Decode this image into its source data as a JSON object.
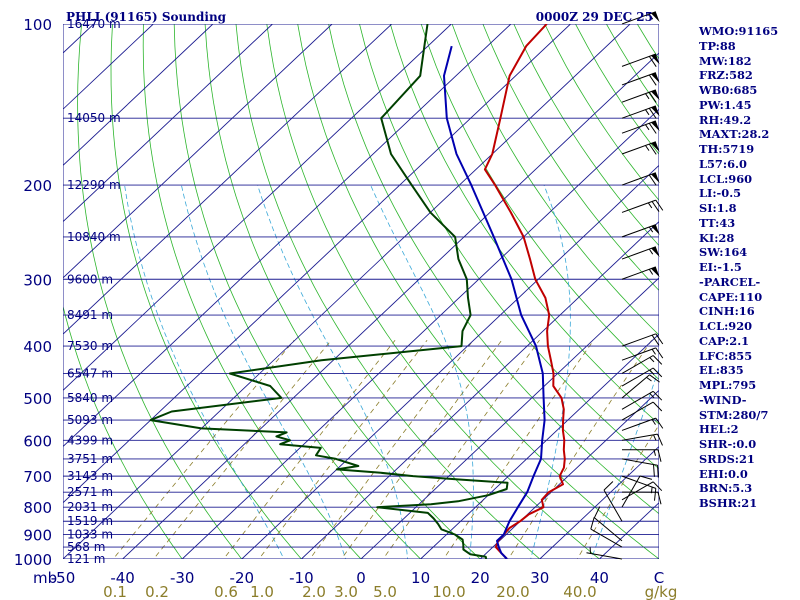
{
  "header": {
    "station": "PHLI (91165) Sounding",
    "time": "0000Z 29 DEC 25"
  },
  "indices": [
    "WMO:91165",
    "TP:88",
    "MW:182",
    "FRZ:582",
    "WB0:685",
    "PW:1.45",
    "RH:49.2",
    "MAXT:28.2",
    "TH:5719",
    "L57:6.0",
    "LCL:960",
    "LI:-0.5",
    "SI:1.8",
    "TT:43",
    "KI:28",
    "SW:164",
    "EI:-1.5",
    "-PARCEL-",
    "CAPE:110",
    "CINH:16",
    "LCL:920",
    "CAP:2.1",
    "LFC:855",
    "EL:835",
    "MPL:795",
    "-WIND-",
    "STM:280/7",
    "HEL:2",
    "SHR-:0.0",
    "SRDS:21",
    "EHI:0.0",
    "BRN:5.3",
    "BSHR:21"
  ],
  "chart_data": {
    "type": "line",
    "title": "PHLI (91165) Sounding",
    "subtitle": "0000Z 29 DEC 25",
    "xlabel": "",
    "ylabel": "mb",
    "y_scale": "log",
    "y_reversed": true,
    "ylim": [
      1000,
      100
    ],
    "xlim": [
      -50,
      50
    ],
    "skew": "skew-T log-p",
    "pressure_ticks": [
      "100",
      "200",
      "300",
      "400",
      "500",
      "600",
      "700",
      "800",
      "900",
      "1000"
    ],
    "temperature_ticks": [
      "-50",
      "-40",
      "-30",
      "-20",
      "-10",
      "0",
      "10",
      "20",
      "30",
      "40",
      "C"
    ],
    "mixing_ratio_ticks": [
      "0.1",
      "0.2",
      "0.6",
      "1.0",
      "2.0",
      "3.0",
      "5.0",
      "10.0",
      "20.0",
      "40.0",
      "g/kg"
    ],
    "height_labels": [
      {
        "p": 100,
        "text": "16470 m"
      },
      {
        "p": 150,
        "text": "14050 m"
      },
      {
        "p": 200,
        "text": "12290 m"
      },
      {
        "p": 250,
        "text": "10840 m"
      },
      {
        "p": 300,
        "text": "9600 m"
      },
      {
        "p": 350,
        "text": "8491 m"
      },
      {
        "p": 400,
        "text": "7530 m"
      },
      {
        "p": 450,
        "text": "6547 m"
      },
      {
        "p": 500,
        "text": "5840 m"
      },
      {
        "p": 550,
        "text": "5093 m"
      },
      {
        "p": 600,
        "text": "4399 m"
      },
      {
        "p": 650,
        "text": "3751 m"
      },
      {
        "p": 700,
        "text": "3143 m"
      },
      {
        "p": 750,
        "text": "2571 m"
      },
      {
        "p": 800,
        "text": "2031 m"
      },
      {
        "p": 850,
        "text": "1519 m"
      },
      {
        "p": 900,
        "text": "1033 m"
      },
      {
        "p": 950,
        "text": "568 m"
      },
      {
        "p": 1000,
        "text": "121 m"
      }
    ],
    "series": [
      {
        "key": "temperature",
        "color": "#c00000",
        "points": [
          [
            1000,
            24.5
          ],
          [
            975,
            22.5
          ],
          [
            950,
            20.5
          ],
          [
            925,
            19.8
          ],
          [
            900,
            19.6
          ],
          [
            875,
            19.4
          ],
          [
            850,
            20.0
          ],
          [
            825,
            20.2
          ],
          [
            800,
            21.4
          ],
          [
            775,
            19.8
          ],
          [
            750,
            19.6
          ],
          [
            725,
            20.6
          ],
          [
            700,
            18.6
          ],
          [
            675,
            17.8
          ],
          [
            650,
            16.4
          ],
          [
            625,
            14.6
          ],
          [
            600,
            13.0
          ],
          [
            575,
            11.0
          ],
          [
            550,
            9.2
          ],
          [
            525,
            7.4
          ],
          [
            500,
            5.0
          ],
          [
            475,
            1.5
          ],
          [
            450,
            -0.7
          ],
          [
            425,
            -3.5
          ],
          [
            400,
            -6.5
          ],
          [
            375,
            -9.3
          ],
          [
            350,
            -11.8
          ],
          [
            325,
            -15.5
          ],
          [
            300,
            -20.5
          ],
          [
            275,
            -25.0
          ],
          [
            250,
            -30.0
          ],
          [
            225,
            -36.5
          ],
          [
            200,
            -44.0
          ],
          [
            187,
            -48.5
          ],
          [
            175,
            -50.0
          ],
          [
            150,
            -55.0
          ],
          [
            125,
            -61.0
          ],
          [
            110,
            -63.5
          ],
          [
            100,
            -64.0
          ]
        ]
      },
      {
        "key": "dewpoint",
        "color": "#004000",
        "points": [
          [
            1000,
            21.0
          ],
          [
            990,
            20.5
          ],
          [
            980,
            17.5
          ],
          [
            960,
            15.5
          ],
          [
            940,
            14.6
          ],
          [
            920,
            13.6
          ],
          [
            900,
            11.4
          ],
          [
            880,
            8.2
          ],
          [
            860,
            6.7
          ],
          [
            840,
            5.0
          ],
          [
            820,
            3.0
          ],
          [
            800,
            -6.5
          ],
          [
            790,
            2.0
          ],
          [
            780,
            6.0
          ],
          [
            760,
            10.0
          ],
          [
            740,
            12.0
          ],
          [
            720,
            11.0
          ],
          [
            710,
            2.0
          ],
          [
            700,
            -6.0
          ],
          [
            690,
            -12.0
          ],
          [
            680,
            -20.0
          ],
          [
            670,
            -17.0
          ],
          [
            650,
            -22.0
          ],
          [
            640,
            -26.0
          ],
          [
            620,
            -26.5
          ],
          [
            610,
            -34.0
          ],
          [
            600,
            -33.0
          ],
          [
            590,
            -36.0
          ],
          [
            580,
            -35.0
          ],
          [
            570,
            -50.0
          ],
          [
            550,
            -60.0
          ],
          [
            530,
            -58.0
          ],
          [
            500,
            -42.0
          ],
          [
            475,
            -46.0
          ],
          [
            450,
            -55.0
          ],
          [
            425,
            -42.0
          ],
          [
            400,
            -21.0
          ],
          [
            375,
            -23.5
          ],
          [
            350,
            -25.0
          ],
          [
            325,
            -28.5
          ],
          [
            300,
            -32.0
          ],
          [
            275,
            -37.0
          ],
          [
            250,
            -41.5
          ],
          [
            225,
            -50.0
          ],
          [
            200,
            -58.0
          ],
          [
            175,
            -67.0
          ],
          [
            150,
            -75.0
          ],
          [
            125,
            -76.0
          ],
          [
            100,
            -84.0
          ]
        ]
      },
      {
        "key": "parcel",
        "color": "#0000b0",
        "points": [
          [
            1000,
            24.5
          ],
          [
            975,
            22.5
          ],
          [
            950,
            21.0
          ],
          [
            925,
            19.6
          ],
          [
            900,
            19.6
          ],
          [
            850,
            18.2
          ],
          [
            800,
            17.1
          ],
          [
            750,
            16.0
          ],
          [
            700,
            14.2
          ],
          [
            650,
            12.4
          ],
          [
            600,
            9.3
          ],
          [
            550,
            6.1
          ],
          [
            500,
            2.0
          ],
          [
            450,
            -2.5
          ],
          [
            400,
            -8.5
          ],
          [
            350,
            -16.5
          ],
          [
            300,
            -24.5
          ],
          [
            250,
            -35.0
          ],
          [
            200,
            -48.0
          ],
          [
            175,
            -56.0
          ],
          [
            150,
            -64.0
          ],
          [
            125,
            -72.0
          ],
          [
            110,
            -76.0
          ]
        ]
      }
    ],
    "wind_barbs": [
      {
        "p": 1000,
        "dir": 280,
        "spd": 7
      },
      {
        "p": 950,
        "dir": 300,
        "spd": 10
      },
      {
        "p": 925,
        "dir": 310,
        "spd": 10
      },
      {
        "p": 850,
        "dir": 330,
        "spd": 10
      },
      {
        "p": 800,
        "dir": 30,
        "spd": 10
      },
      {
        "p": 775,
        "dir": 60,
        "spd": 10
      },
      {
        "p": 750,
        "dir": 90,
        "spd": 10
      },
      {
        "p": 700,
        "dir": 110,
        "spd": 15
      },
      {
        "p": 650,
        "dir": 100,
        "spd": 20
      },
      {
        "p": 625,
        "dir": 90,
        "spd": 15
      },
      {
        "p": 600,
        "dir": 80,
        "spd": 15
      },
      {
        "p": 575,
        "dir": 70,
        "spd": 15
      },
      {
        "p": 550,
        "dir": 60,
        "spd": 10
      },
      {
        "p": 525,
        "dir": 60,
        "spd": 15
      },
      {
        "p": 500,
        "dir": 50,
        "spd": 15
      },
      {
        "p": 475,
        "dir": 60,
        "spd": 15
      },
      {
        "p": 450,
        "dir": 60,
        "spd": 15
      },
      {
        "p": 425,
        "dir": 70,
        "spd": 15
      },
      {
        "p": 400,
        "dir": 70,
        "spd": 20
      },
      {
        "p": 300,
        "dir": 70,
        "spd": 55
      },
      {
        "p": 275,
        "dir": 70,
        "spd": 55
      },
      {
        "p": 250,
        "dir": 70,
        "spd": 55
      },
      {
        "p": 225,
        "dir": 70,
        "spd": 25
      },
      {
        "p": 200,
        "dir": 70,
        "spd": 60
      },
      {
        "p": 175,
        "dir": 70,
        "spd": 65
      },
      {
        "p": 160,
        "dir": 70,
        "spd": 65
      },
      {
        "p": 150,
        "dir": 70,
        "spd": 65
      },
      {
        "p": 140,
        "dir": 70,
        "spd": 65
      },
      {
        "p": 130,
        "dir": 70,
        "spd": 60
      },
      {
        "p": 120,
        "dir": 70,
        "spd": 60
      },
      {
        "p": 100,
        "dir": 70,
        "spd": 55
      }
    ]
  }
}
